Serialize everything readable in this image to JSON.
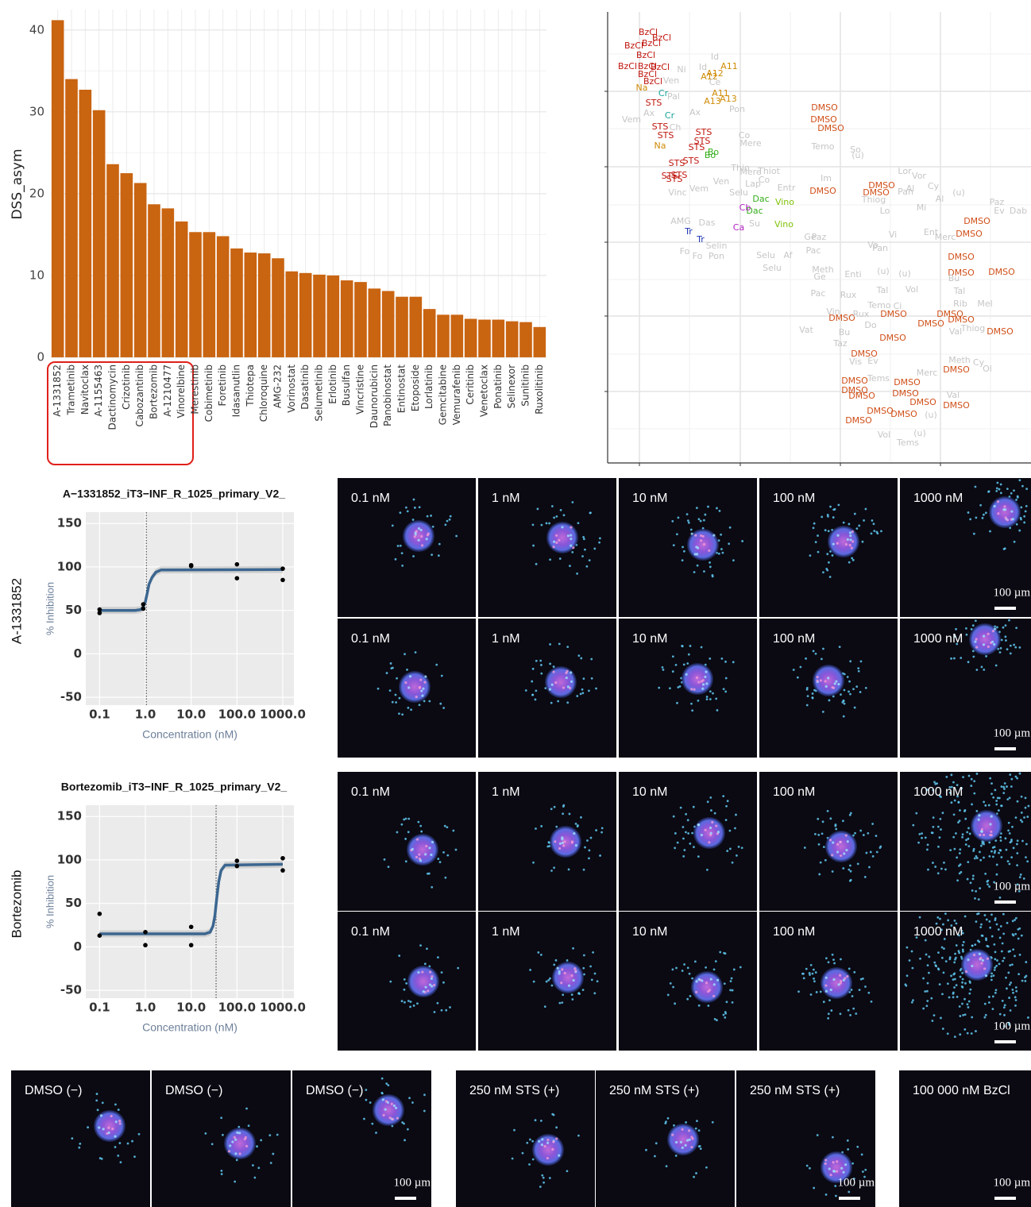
{
  "chart_data": [
    {
      "type": "bar",
      "ylabel": "DSS_asym",
      "color": "#c96411",
      "categories": [
        "A-1331852",
        "Trametinib",
        "Navitoclax",
        "A-1155463",
        "Dactinomycin",
        "Crizotinib",
        "Cabozantinib",
        "Bortezomib",
        "A-1210477",
        "Vinorelbine",
        "Merestinib",
        "Cobimetinib",
        "Foretinib",
        "Idasanutlin",
        "Thiotepa",
        "Chloroquine",
        "AMG-232",
        "Vorinostat",
        "Dasatinib",
        "Selumetinib",
        "Erlotinib",
        "Busulfan",
        "Vincristine",
        "Daunorubicin",
        "Panobinostat",
        "Entinostat",
        "Etoposide",
        "Lorlatinib",
        "Gemcitabine",
        "Vemurafenib",
        "Ceritinib",
        "Venetoclax",
        "Ponatinib",
        "Selinexor",
        "Sunitinib",
        "Ruxolitinib"
      ],
      "values": [
        41.2,
        34.0,
        32.7,
        30.2,
        23.6,
        22.5,
        21.3,
        18.7,
        18.2,
        16.6,
        15.3,
        15.3,
        14.8,
        13.3,
        12.8,
        12.7,
        12.1,
        10.5,
        10.3,
        10.1,
        10.0,
        9.4,
        9.2,
        8.4,
        8.1,
        7.4,
        7.4,
        5.9,
        5.2,
        5.2,
        4.7,
        4.6,
        4.6,
        4.4,
        4.3,
        3.7
      ],
      "ylim": [
        -0.2,
        42.5
      ],
      "yticks": [
        0,
        10,
        20,
        30,
        40
      ],
      "yminor": [
        5,
        15,
        25,
        35
      ],
      "grid": true
    },
    {
      "type": "text-scatter",
      "xlim": [
        0,
        533
      ],
      "ylim": [
        0,
        568
      ],
      "xticks": [
        40,
        167,
        293,
        419
      ],
      "yticks": [
        90,
        185,
        278,
        373,
        468
      ],
      "xminor": [
        103,
        230,
        356,
        482
      ],
      "yminor": [
        43,
        137,
        231,
        325,
        421,
        515
      ],
      "grid": true,
      "series": [
        {
          "color": "#c0160e",
          "labels": [
            "BzCl",
            "BzCl",
            "BzCl",
            "BzCl",
            "BzCl",
            "BzCl",
            "BzCl",
            "BzCl",
            "BzCl",
            "BzCl",
            "STS",
            "STS",
            "STS",
            "STS",
            "STS",
            "STS",
            "STS",
            "STS",
            "STS",
            "STS",
            "STS"
          ],
          "x": [
            51,
            68,
            33,
            55,
            48,
            66,
            25,
            50,
            50,
            57,
            58,
            66,
            73,
            121,
            119,
            112,
            105,
            87,
            78,
            90,
            84
          ],
          "y": [
            542,
            535,
            525,
            528,
            513,
            498,
            499,
            499,
            489,
            480,
            453,
            423,
            412,
            416,
            405,
            397,
            380,
            377,
            361,
            362,
            357
          ]
        },
        {
          "color": "#cf8a04",
          "labels": [
            "A11",
            "A12",
            "A12",
            "Na",
            "A11",
            "A13",
            "A13",
            "Na"
          ],
          "x": [
            153,
            128,
            135,
            43,
            142,
            152,
            132,
            66
          ],
          "y": [
            499,
            486,
            490,
            472,
            465,
            458,
            455,
            399
          ]
        },
        {
          "color": "#13a49a",
          "labels": [
            "Cr",
            "Cr"
          ],
          "x": [
            70,
            78
          ],
          "y": [
            465,
            437
          ]
        },
        {
          "color": "#35ad1c",
          "labels": [
            "Bo",
            "Bo",
            "Dac",
            "Dac"
          ],
          "x": [
            133,
            129,
            193,
            185
          ],
          "y": [
            391,
            387,
            332,
            317
          ]
        },
        {
          "color": "#7fc20a",
          "labels": [
            "Vino",
            "Vino"
          ],
          "x": [
            223,
            222
          ],
          "y": [
            328,
            300
          ]
        },
        {
          "color": "#b01fc2",
          "labels": [
            "Cb",
            "Ca"
          ],
          "x": [
            173,
            165
          ],
          "y": [
            321,
            296
          ]
        },
        {
          "color": "#1a32b0",
          "labels": [
            "Tr",
            "Tr"
          ],
          "x": [
            102,
            117
          ],
          "y": [
            291,
            281
          ]
        },
        {
          "color": "#d04f18",
          "labels": [
            "DMSO",
            "DMSO",
            "DMSO",
            "DMSO",
            "DMSO",
            "DMSO",
            "DMSO",
            "DMSO",
            "DMSO",
            "DMSO",
            "DMSO",
            "DMSO",
            "DMSO",
            "DMSO",
            "DMSO",
            "DMSO",
            "DMSO",
            "DMSO",
            "DMSO",
            "DMSO",
            "DMSO",
            "DMSO",
            "DMSO",
            "DMSO",
            "DMSO",
            "DMSO",
            "DMSO",
            "DMSO",
            "DMSO",
            "DMSO"
          ],
          "x": [
            273,
            272,
            281,
            271,
            345,
            338,
            465,
            455,
            445,
            445,
            496,
            295,
            360,
            431,
            445,
            407,
            494,
            359,
            323,
            311,
            311,
            320,
            377,
            375,
            397,
            439,
            343,
            373,
            316,
            439
          ],
          "y": [
            447,
            432,
            421,
            342,
            349,
            340,
            304,
            288,
            259,
            239,
            240,
            182,
            187,
            187,
            180,
            175,
            165,
            157,
            137,
            103,
            91,
            84,
            101,
            87,
            76,
            72,
            65,
            61,
            53,
            117
          ]
        },
        {
          "color": "#c6c6c6",
          "labels": [
            "Id",
            "Ni",
            "Id",
            "Ce",
            "Ven",
            "Pal",
            "Ax",
            "Vem",
            "Ch",
            "Pon",
            "Ax",
            "Co",
            "Mere",
            "Temo",
            "So",
            "(u)",
            "Thio",
            "Mere",
            "Thiot",
            "Co",
            "Vinc",
            "Vem",
            "Ven",
            "Lap",
            "Selu",
            "Entr",
            "Im",
            "Lor",
            "Vor",
            "Al",
            "Pan",
            "Cy",
            "(u)",
            "Thiog",
            "Al",
            "Paz",
            "Ev",
            "Dab",
            "AMG",
            "Das",
            "Fo",
            "Fo",
            "Pon",
            "Selin",
            "Su",
            "Lo",
            "Mi",
            "Ge",
            "Paz",
            "Pac",
            "Vo",
            "Pan",
            "Vi",
            "Ent",
            "Merc",
            "Selu",
            "Af",
            "Selu",
            "Meth",
            "Ge",
            "Enti",
            "(u)",
            "(u)",
            "Bu",
            "Tal",
            "Vol",
            "Pac",
            "Rux",
            "Tal",
            "Temo",
            "Ci",
            "Rib",
            "Mel",
            "Vin",
            "Rux",
            "Vat",
            "Bu",
            "Do",
            "Val",
            "Thiog",
            "Taz",
            "Vis",
            "Ev",
            "Merc",
            "Meth",
            "Cy",
            "Ol",
            "Tems",
            "Val",
            "(u)",
            "Vol",
            "(u)",
            "Tems"
          ],
          "x": [
            135,
            93,
            120,
            135,
            80,
            83,
            52,
            30,
            85,
            163,
            110,
            172,
            180,
            271,
            312,
            315,
            167,
            180,
            203,
            197,
            88,
            115,
            143,
            183,
            165,
            225,
            275,
            374,
            392,
            381,
            375,
            410,
            442,
            335,
            418,
            490,
            493,
            517,
            92,
            125,
            97,
            113,
            137,
            137,
            185,
            349,
            395,
            255,
            266,
            259,
            334,
            343,
            359,
            407,
            425,
            199,
            227,
            207,
            271,
            267,
            309,
            347,
            374,
            436,
            346,
            383,
            265,
            303,
            443,
            342,
            365,
            444,
            475,
            284,
            319,
            250,
            298,
            331,
            438,
            460,
            293,
            312,
            334,
            402,
            443,
            467,
            478,
            341,
            435,
            407,
            348,
            393,
            378
          ],
          "y": [
            511,
            495,
            498,
            479,
            481,
            461,
            440,
            432,
            422,
            445,
            441,
            412,
            402,
            398,
            394,
            387,
            371,
            366,
            367,
            356,
            340,
            345,
            354,
            351,
            340,
            346,
            358,
            367,
            361,
            345,
            341,
            348,
            340,
            331,
            332,
            328,
            317,
            317,
            304,
            302,
            266,
            260,
            260,
            273,
            301,
            317,
            321,
            284,
            284,
            267,
            274,
            270,
            287,
            290,
            284,
            261,
            261,
            245,
            243,
            234,
            237,
            241,
            238,
            232,
            217,
            218,
            213,
            211,
            216,
            198,
            197,
            200,
            200,
            190,
            187,
            167,
            164,
            173,
            165,
            169,
            150,
            127,
            128,
            113,
            129,
            126,
            118,
            106,
            85,
            60,
            35,
            37,
            25
          ]
        }
      ]
    },
    {
      "type": "dose-response",
      "title": "A−1331852_iT3−INF_R_1025_primary_V2_",
      "row_label": "A-1331852",
      "xlabel": "Concentration (nM)",
      "ylabel": "% Inhibition",
      "xscale": "log",
      "xlim": [
        0.05,
        1750
      ],
      "ylim": [
        -59,
        163
      ],
      "xticks": [
        0.1,
        {
          "value": 1,
          "label": "1.0"
        },
        {
          "value": 10,
          "label": "10.0"
        },
        {
          "value": 100,
          "label": "100.0"
        },
        {
          "value": 1000,
          "label": "1000.0"
        }
      ],
      "yticks": [
        -50,
        0,
        50,
        100,
        150
      ],
      "vline": 1.05,
      "color": "#3b6690",
      "points": {
        "x": [
          0.1,
          0.1,
          0.9,
          0.9,
          10,
          10,
          100,
          100,
          1000,
          1000
        ],
        "y": [
          51,
          47,
          57,
          52,
          102,
          101,
          103,
          87,
          98,
          85
        ]
      },
      "curve": {
        "x": [
          0.1,
          0.6,
          0.8,
          0.9,
          1.0,
          1.1,
          1.2,
          1.4,
          1.7,
          2.2,
          1000
        ],
        "y": [
          50,
          50,
          51,
          54,
          60,
          70,
          80,
          88,
          94,
          96.5,
          97
        ],
        "upper": [
          54,
          54,
          55,
          58,
          64,
          74,
          84,
          92,
          98,
          100.5,
          101
        ],
        "lower": [
          46,
          46,
          47,
          50,
          56,
          66,
          76,
          84,
          90,
          92.5,
          93
        ]
      }
    },
    {
      "type": "dose-response",
      "title": "Bortezomib_iT3−INF_R_1025_primary_V2_",
      "row_label": "Bortezomib",
      "xlabel": "Concentration (nM)",
      "ylabel": "% Inhibition",
      "xscale": "log",
      "xlim": [
        0.05,
        1750
      ],
      "ylim": [
        -59,
        163
      ],
      "xticks": [
        0.1,
        {
          "value": 1,
          "label": "1.0"
        },
        {
          "value": 10,
          "label": "10.0"
        },
        {
          "value": 100,
          "label": "100.0"
        },
        {
          "value": 1000,
          "label": "1000.0"
        }
      ],
      "yticks": [
        -50,
        0,
        50,
        100,
        150
      ],
      "vline": 35,
      "color": "#3b6690",
      "points": {
        "x": [
          0.1,
          0.1,
          1,
          1,
          10,
          10,
          100,
          100,
          1000,
          1000
        ],
        "y": [
          38,
          13,
          17,
          2,
          23,
          2,
          99,
          93,
          102,
          88
        ]
      },
      "curve": {
        "x": [
          0.1,
          20,
          26,
          30,
          33,
          36,
          40,
          45,
          55,
          1000
        ],
        "y": [
          15,
          15,
          17,
          24,
          36,
          55,
          75,
          88,
          94,
          95
        ],
        "upper": [
          19,
          19,
          21,
          28,
          40,
          59,
          79,
          92,
          98,
          99
        ],
        "lower": [
          11,
          11,
          13,
          20,
          32,
          51,
          71,
          84,
          90,
          91
        ]
      }
    }
  ],
  "image_grid": {
    "concentrations": [
      "0.1 nM",
      "1 nM",
      "10 nM",
      "100 nM",
      "1000 nM"
    ],
    "scale_bar": "100 µm"
  },
  "controls": {
    "labels": [
      "DMSO (−)",
      "DMSO (−)",
      "DMSO (−)",
      "250 nM STS (+)",
      "250 nM STS (+)",
      "250 nM STS (+)",
      "100 000 nM BzCl"
    ]
  }
}
